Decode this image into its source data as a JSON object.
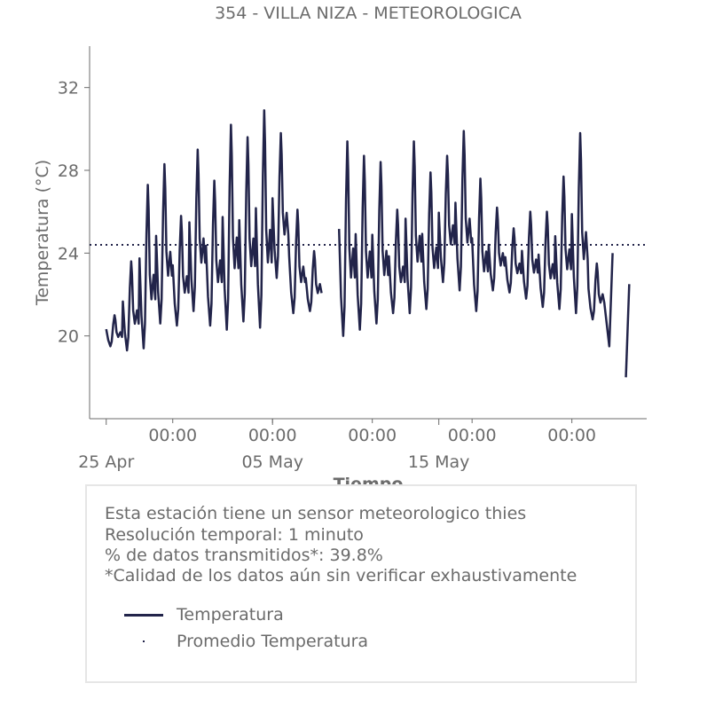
{
  "chart_data": {
    "type": "line",
    "title": "354 - VILLA NIZA - METEOROLOGICA",
    "xlabel": "Tiempo",
    "ylabel": "Temperatura (°C)",
    "x_start": "2024-04-25",
    "x_range": [
      "2024-04-24 00:00",
      "2024-05-27 12:00"
    ],
    "ylim": [
      16,
      34
    ],
    "yticks": [
      20,
      24,
      28,
      32
    ],
    "x_major_labels": [
      {
        "date": "2024-04-25",
        "label": "25 Apr"
      },
      {
        "date": "2024-05-05",
        "label": "05 May"
      },
      {
        "date": "2024-05-15",
        "label": "15 May"
      }
    ],
    "x_minor_labels": [
      {
        "date": "2024-04-29",
        "label": "00:00"
      },
      {
        "date": "2024-05-05",
        "label": "00:00"
      },
      {
        "date": "2024-05-11",
        "label": "00:00"
      },
      {
        "date": "2024-05-17",
        "label": "00:00"
      },
      {
        "date": "2024-05-23",
        "label": "00:00"
      }
    ],
    "grid": false,
    "series": [
      {
        "name": "Temperatura",
        "style": "line",
        "color": "#22244a",
        "daily_min": [
          19.5,
          19.3,
          19.4,
          20.6,
          20.5,
          21.2,
          20.5,
          20.3,
          20.7,
          20.4,
          22.8,
          21.1,
          21.2,
          null,
          20.0,
          20.3,
          20.6,
          21.1,
          21.1,
          21.3,
          22.6,
          22.2,
          21.2,
          22.2,
          22.1,
          21.8,
          21.4,
          21.3,
          21.1,
          20.8,
          19.5,
          18.0
        ],
        "daily_max": [
          21.0,
          23.6,
          27.3,
          28.3,
          25.8,
          29.0,
          27.5,
          30.2,
          29.6,
          30.9,
          29.8,
          26.1,
          24.1,
          null,
          29.4,
          28.7,
          28.4,
          26.1,
          29.4,
          27.9,
          28.7,
          29.9,
          27.6,
          26.2,
          25.2,
          26.0,
          26.0,
          27.7,
          29.8,
          23.5,
          null,
          null
        ]
      },
      {
        "name": "Promedio Temperatura",
        "style": "dotted",
        "color": "#22244a",
        "value": 24.4
      }
    ],
    "legend": "bottom"
  },
  "info": {
    "line1": "Esta estación tiene un sensor meteorologico thies",
    "line2": "Resolución temporal: 1 minuto",
    "line3": "% de datos transmitidos*: 39.8%",
    "line4": "*Calidad de los datos aún sin verificar exhaustivamente"
  },
  "colors": {
    "text": "#6b6b6b",
    "series": "#22244a",
    "axis": "#6b6b6b",
    "legend_border": "#e6e6e6"
  }
}
